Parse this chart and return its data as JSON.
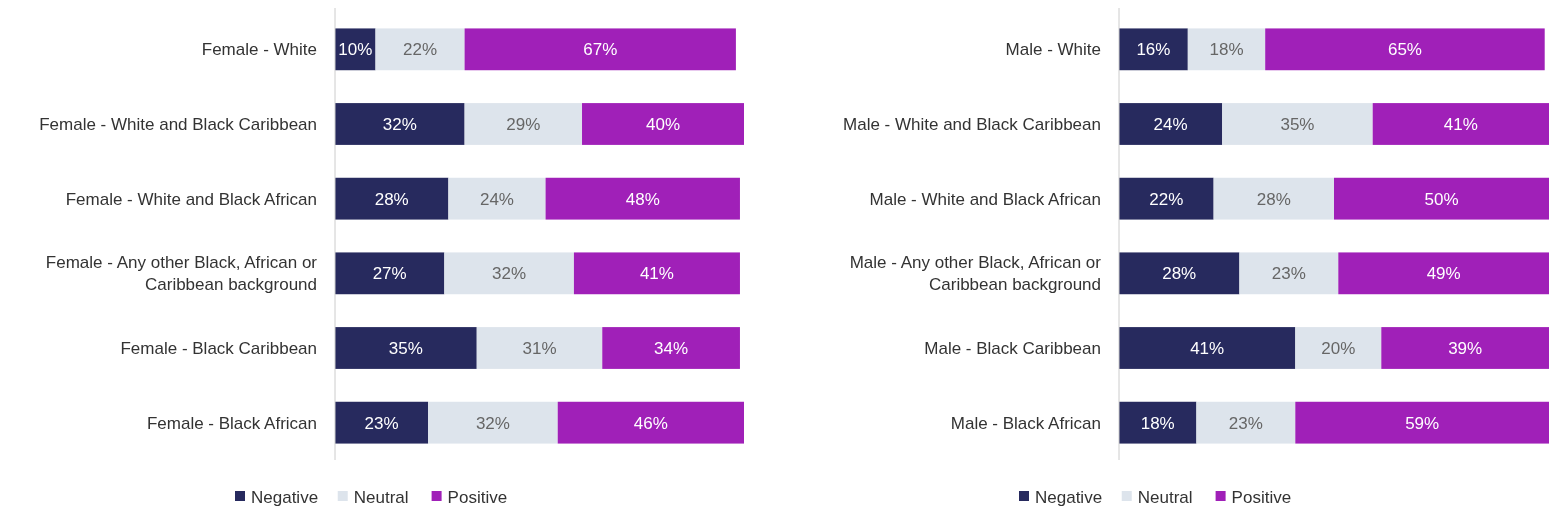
{
  "chart_data": [
    {
      "type": "bar",
      "orientation": "horizontal",
      "stacked": true,
      "legend": "bottom",
      "tick_labels": "y",
      "categories": [
        "Female - White",
        "Female - White and Black Caribbean",
        "Female - White and Black African",
        "Female - Any other Black, African or Caribbean background",
        "Female - Black Caribbean",
        "Female - Black African"
      ],
      "series": [
        {
          "name": "Negative",
          "color": "#272a5e",
          "values": [
            10,
            32,
            28,
            27,
            35,
            23
          ],
          "value_labels": [
            "10%",
            "32%",
            "28%",
            "27%",
            "35%",
            "23%"
          ]
        },
        {
          "name": "Neutral",
          "color": "#dde4ec",
          "values": [
            22,
            29,
            24,
            32,
            31,
            32
          ],
          "value_labels": [
            "22%",
            "29%",
            "24%",
            "32%",
            "31%",
            "32%"
          ]
        },
        {
          "name": "Positive",
          "color": "#a020b8",
          "values": [
            67,
            40,
            48,
            41,
            34,
            46
          ],
          "value_labels": [
            "67%",
            "40%",
            "48%",
            "41%",
            "34%",
            "46%"
          ]
        }
      ]
    },
    {
      "type": "bar",
      "orientation": "horizontal",
      "stacked": true,
      "legend": "bottom",
      "tick_labels": "y",
      "categories": [
        "Male - White",
        "Male - White and Black Caribbean",
        "Male - White and Black African",
        "Male - Any other Black, African or Caribbean background",
        "Male - Black Caribbean",
        "Male - Black African"
      ],
      "series": [
        {
          "name": "Negative",
          "color": "#272a5e",
          "values": [
            16,
            24,
            22,
            28,
            41,
            18
          ],
          "value_labels": [
            "16%",
            "24%",
            "22%",
            "28%",
            "41%",
            "18%"
          ]
        },
        {
          "name": "Neutral",
          "color": "#dde4ec",
          "values": [
            18,
            35,
            28,
            23,
            20,
            23
          ],
          "value_labels": [
            "18%",
            "35%",
            "28%",
            "23%",
            "20%",
            "23%"
          ]
        },
        {
          "name": "Positive",
          "color": "#a020b8",
          "values": [
            65,
            41,
            50,
            49,
            39,
            59
          ],
          "value_labels": [
            "65%",
            "41%",
            "50%",
            "49%",
            "39%",
            "59%"
          ]
        }
      ]
    }
  ]
}
